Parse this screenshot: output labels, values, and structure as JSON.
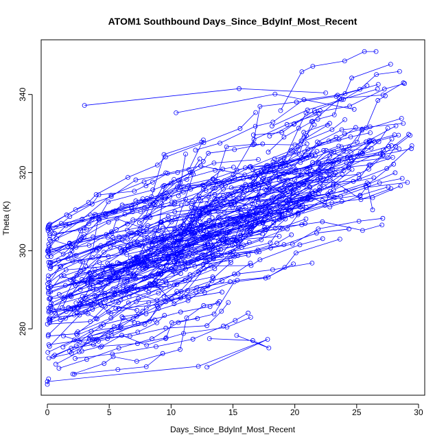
{
  "chart_data": {
    "type": "line",
    "title": "ATOM1 Southbound Days_Since_BdyInf_Most_Recent",
    "xlabel": "Days_Since_BdyInf_Most_Recent",
    "ylabel": "Theta (K)",
    "xlim": [
      -0.5,
      30.5
    ],
    "ylim": [
      263,
      354
    ],
    "x_ticks": [
      0,
      5,
      10,
      15,
      20,
      25,
      30
    ],
    "y_ticks": [
      280,
      300,
      320,
      340
    ],
    "grid": false,
    "legend": "none",
    "series_color": "#0000ff",
    "marker": "open-circle",
    "approx_point_count": 1400,
    "series": [
      {
        "values_note": "dense trajectories; representative sample of visible points",
        "x": [
          0,
          0.1,
          0.2,
          0.5,
          1.2,
          2.4,
          3.7,
          5.1,
          6.3,
          7.5,
          8.8,
          10.1,
          11.4,
          12.8,
          13.9,
          15.0,
          16.2,
          17.3,
          18.5,
          19.6,
          20.4,
          21.1,
          21.8,
          22.5,
          23.2,
          24.0,
          24.8,
          25.6,
          26.5,
          27.4,
          28.3,
          29.3
        ],
        "y": [
          266,
          272,
          279,
          287,
          281,
          286,
          291,
          294,
          297,
          300,
          302,
          304,
          306,
          309,
          312,
          316,
          320,
          323,
          326,
          329,
          332,
          336,
          339,
          342,
          344,
          341,
          338,
          335,
          332,
          336,
          339,
          342
        ]
      }
    ]
  }
}
